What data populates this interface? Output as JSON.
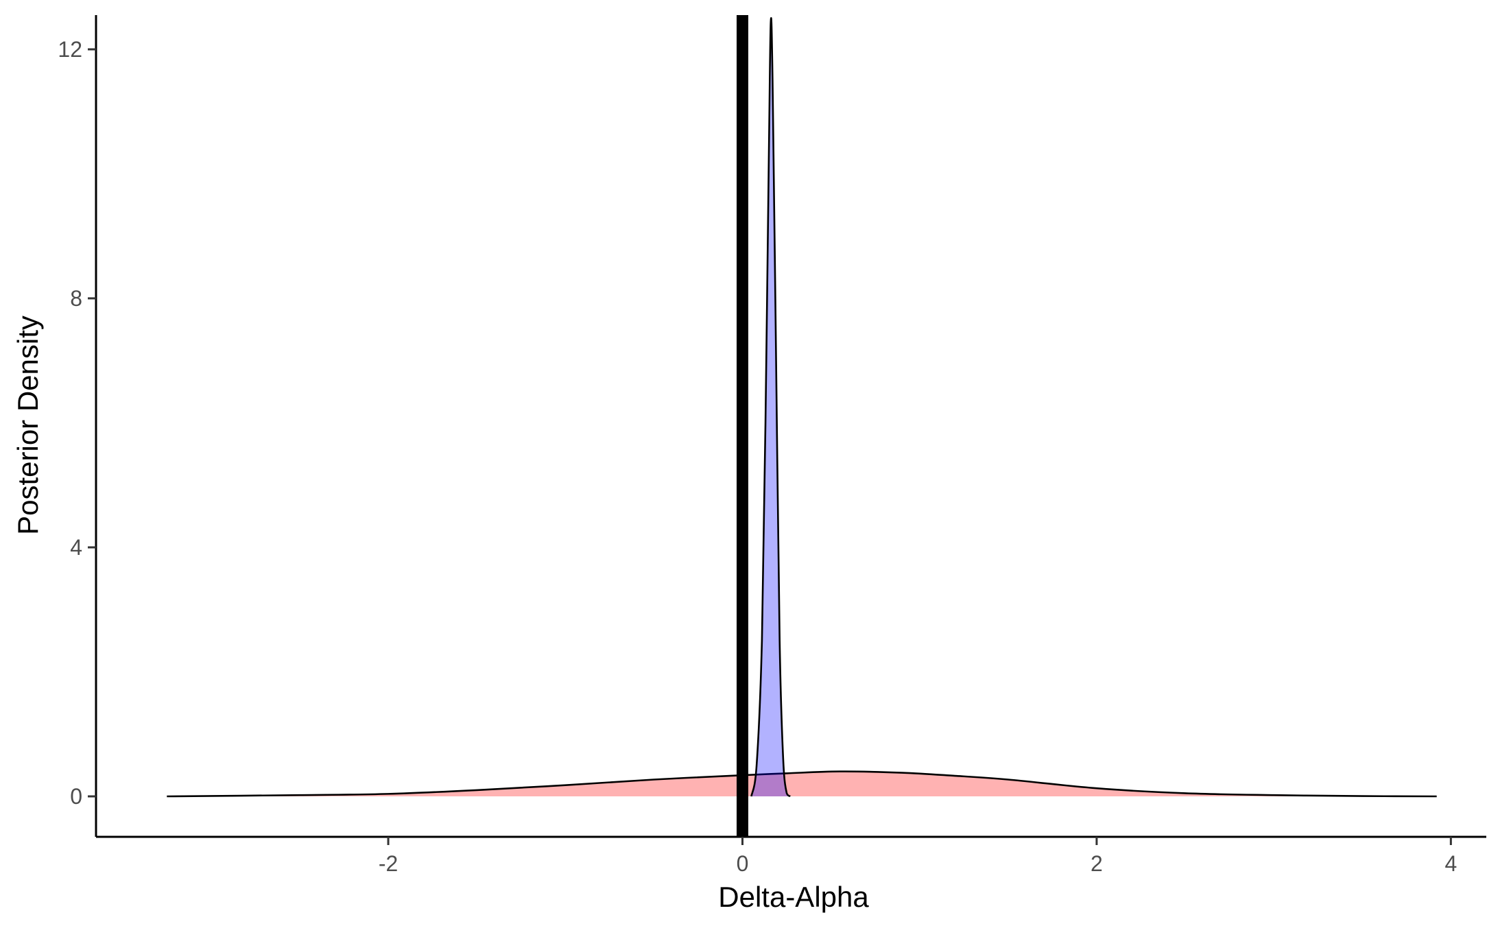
{
  "chart_data": {
    "type": "area",
    "title": "",
    "xlabel": "Delta-Alpha",
    "ylabel": "Posterior Density",
    "xlim": [
      -3.65,
      4.2
    ],
    "ylim": [
      -0.65,
      12.55
    ],
    "x_ticks": [
      -2,
      0,
      2,
      4
    ],
    "y_ticks": [
      0,
      4,
      8,
      12
    ],
    "grid": false,
    "legend": "none",
    "reference_line": {
      "x": 0,
      "color": "#000000"
    },
    "series": [
      {
        "fill": "#ff0000",
        "fill_opacity": 0.3,
        "x": [
          -3.25,
          -2.5,
          -2.0,
          -1.5,
          -1.0,
          -0.5,
          0.0,
          0.25,
          0.55,
          0.9,
          1.2,
          1.5,
          2.0,
          2.5,
          3.0,
          3.5,
          3.92
        ],
        "y": [
          0.0,
          0.02,
          0.04,
          0.1,
          0.18,
          0.27,
          0.34,
          0.37,
          0.4,
          0.38,
          0.33,
          0.27,
          0.13,
          0.05,
          0.02,
          0.005,
          0.0
        ]
      },
      {
        "fill": "#0000ff",
        "fill_opacity": 0.3,
        "x": [
          0.05,
          0.08,
          0.11,
          0.13,
          0.15,
          0.16,
          0.17,
          0.19,
          0.21,
          0.23,
          0.25,
          0.27
        ],
        "y": [
          0.0,
          0.5,
          2.5,
          6.0,
          10.5,
          12.45,
          11.5,
          7.0,
          2.5,
          0.6,
          0.05,
          0.0
        ]
      }
    ]
  }
}
